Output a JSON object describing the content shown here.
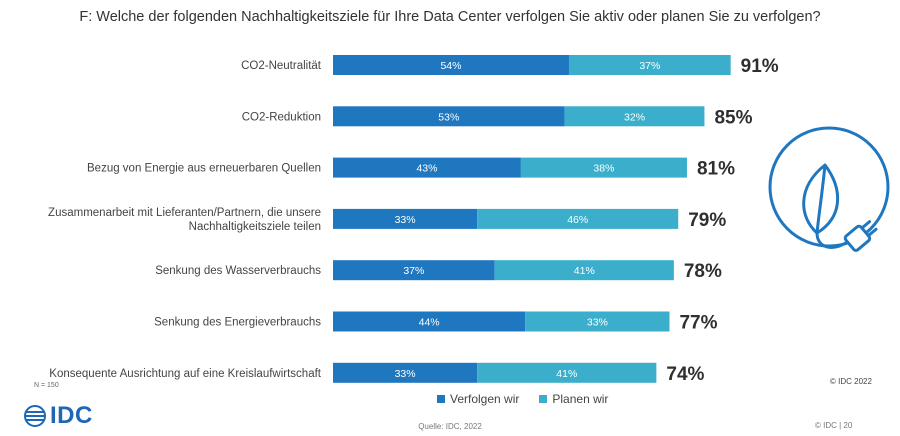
{
  "title": "F: Welche der folgenden Nachhaltigkeitsziele für Ihre Data Center verfolgen Sie aktiv oder planen Sie zu verfolgen?",
  "chart_data": {
    "type": "bar",
    "orientation": "horizontal",
    "stacked": true,
    "categories": [
      [
        "CO2-Neutralität"
      ],
      [
        "CO2-Reduktion"
      ],
      [
        "Bezug von Energie aus erneuerbaren Quellen"
      ],
      [
        "Zusammenarbeit mit Lieferanten/Partnern, die unsere",
        "Nachhaltigkeitsziele teilen"
      ],
      [
        "Senkung des Wasserverbrauchs"
      ],
      [
        "Senkung des Energieverbrauchs"
      ],
      [
        "Konsequente Ausrichtung auf eine Kreislaufwirtschaft"
      ]
    ],
    "series": [
      {
        "name": "Verfolgen wir",
        "color": "#1f77c0",
        "values": [
          54,
          53,
          43,
          33,
          37,
          44,
          33
        ]
      },
      {
        "name": "Planen wir",
        "color": "#3aaecb",
        "values": [
          37,
          32,
          38,
          46,
          41,
          33,
          41
        ]
      }
    ],
    "totals": [
      91,
      85,
      81,
      79,
      78,
      77,
      74
    ],
    "value_suffix": "%",
    "xlim": [
      0,
      100
    ]
  },
  "legend": {
    "item1": "Verfolgen wir",
    "item2": "Planen wir"
  },
  "sample_note": "N = 150",
  "copyright": "© IDC 2022",
  "source": "Quelle: IDC, 2022",
  "footer_right": "© IDC  |   20",
  "logo_text": "IDC",
  "colors": {
    "accent": "#1f77c0",
    "secondary": "#3aaecb",
    "logo": "#1e67b4"
  },
  "icon": "leaf-plug-icon"
}
